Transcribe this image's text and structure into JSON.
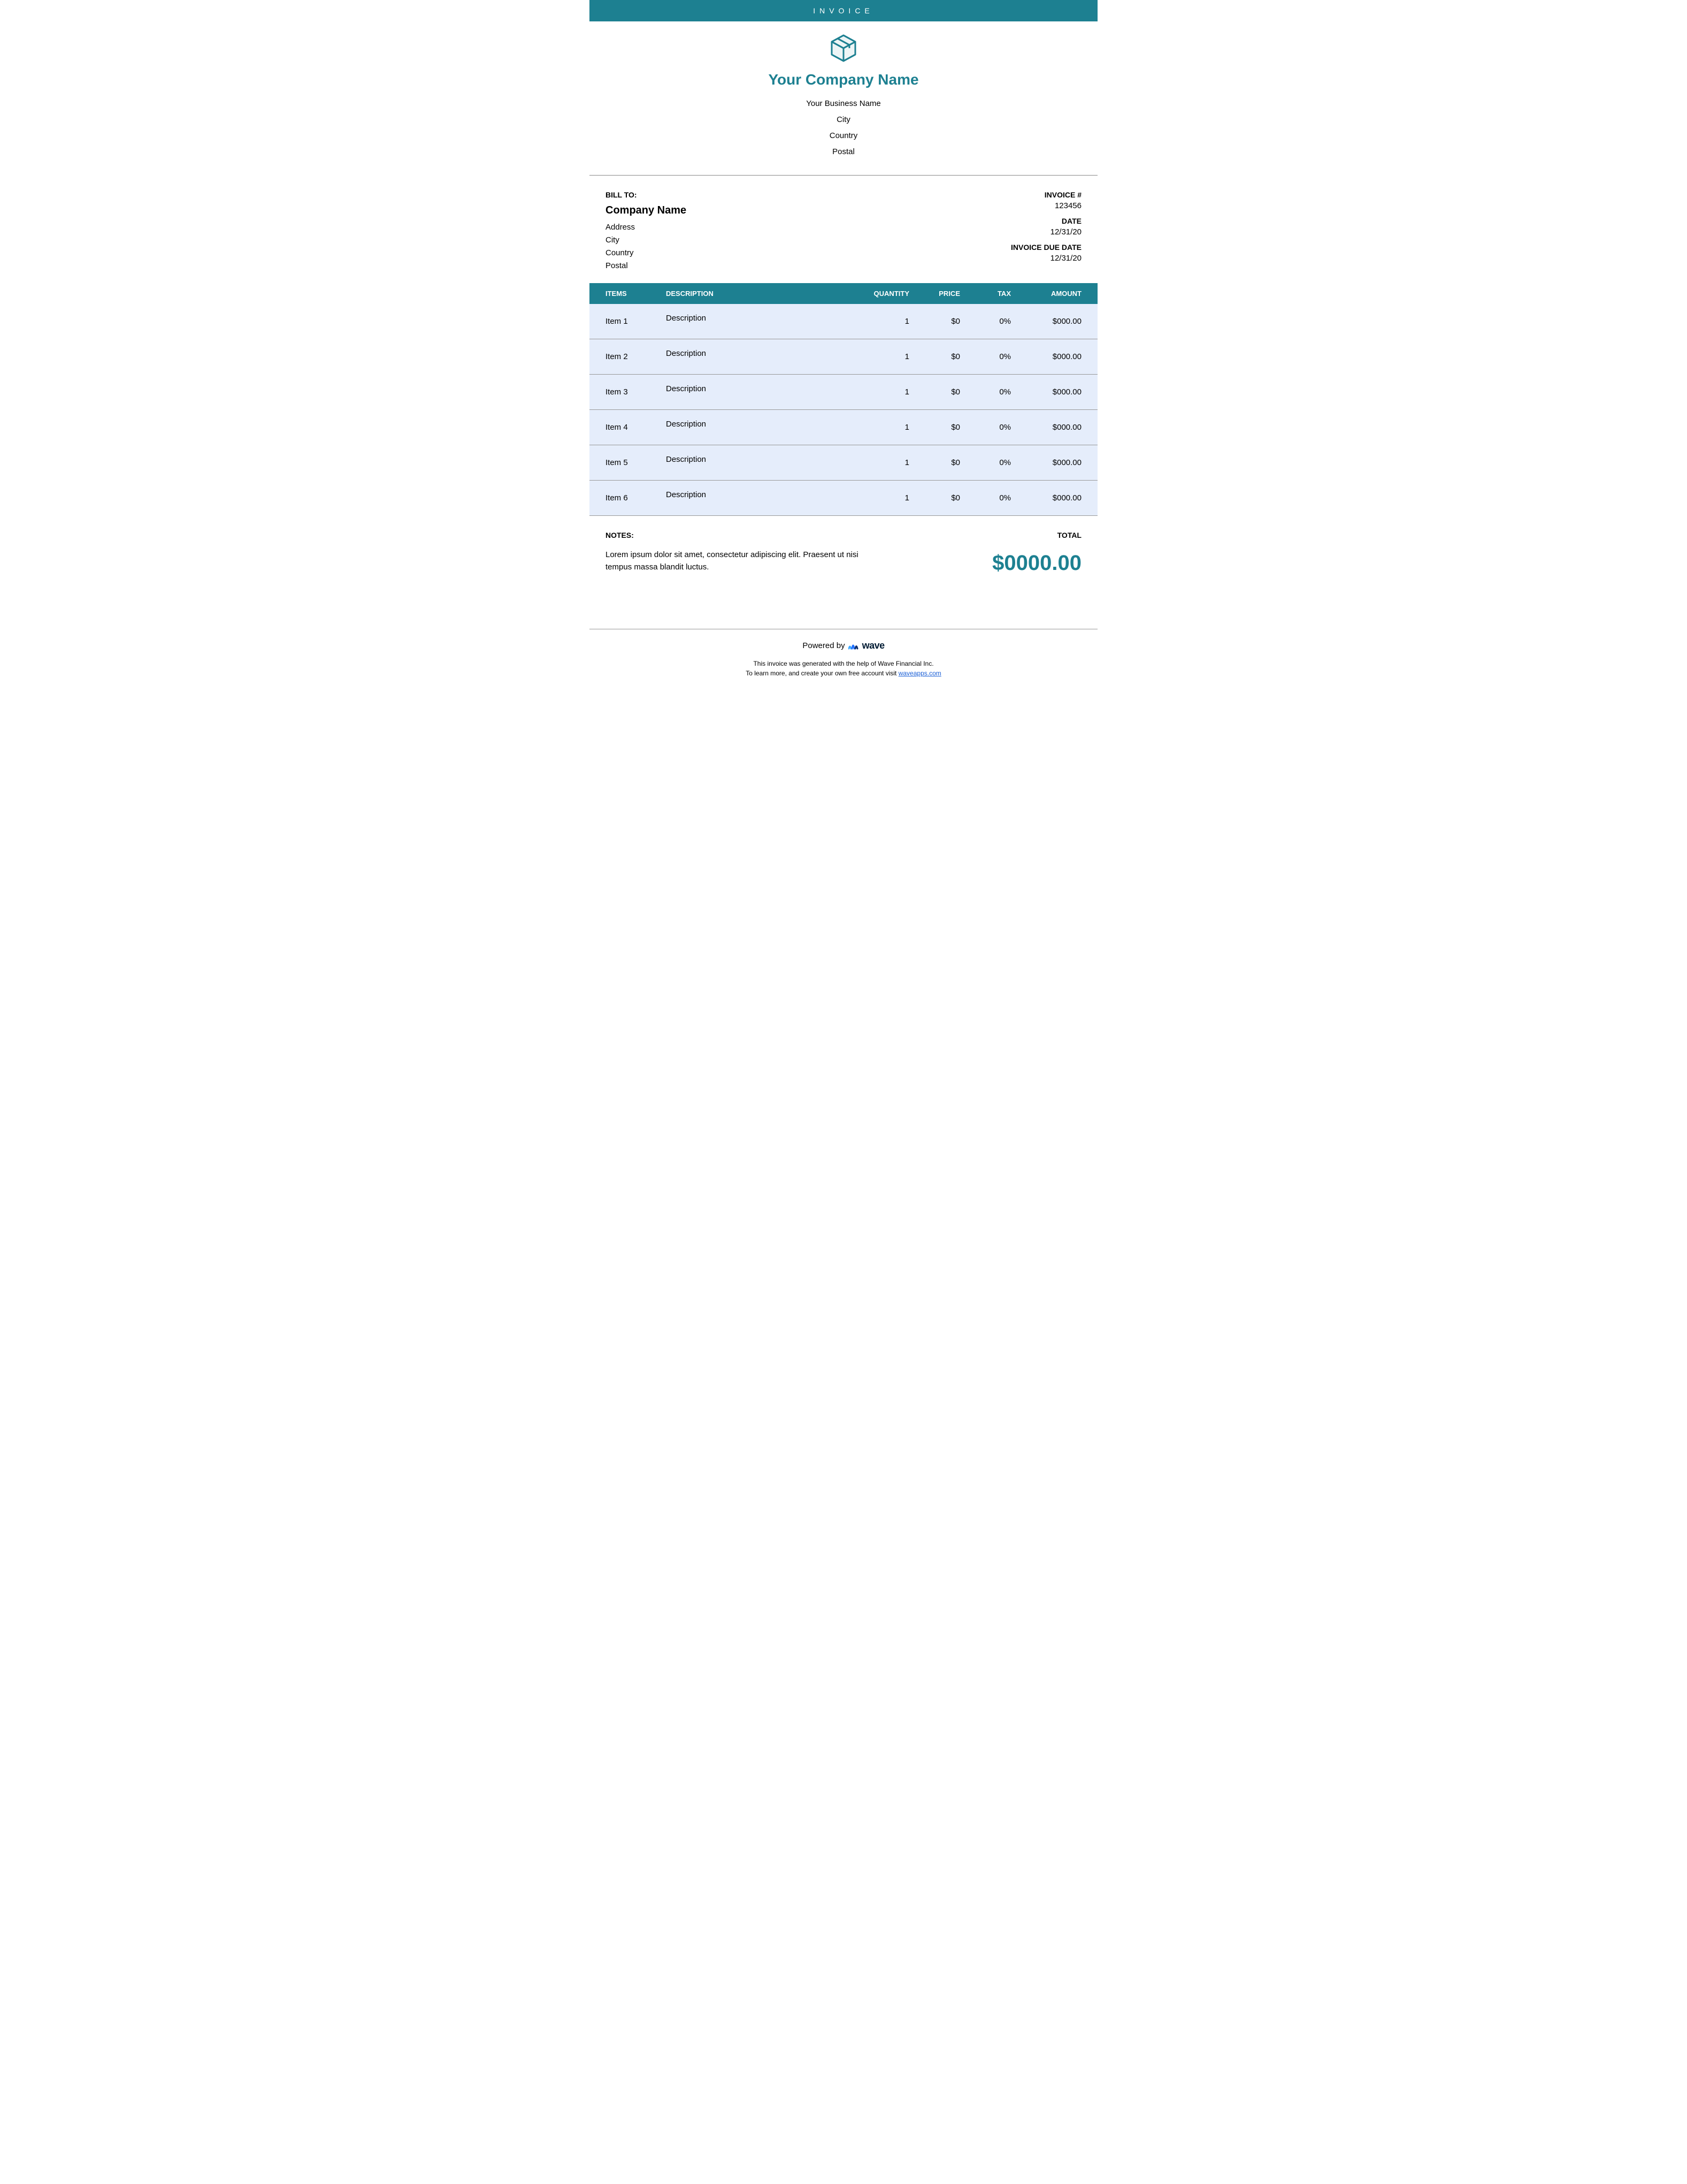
{
  "colors": {
    "brand": "#1d8091",
    "row_bg": "#e5edfb",
    "text": "#000000",
    "white": "#ffffff",
    "border": "#999999",
    "link": "#1a5fd6"
  },
  "banner": {
    "title": "INVOICE"
  },
  "company": {
    "name": "Your Company Name",
    "business": "Your Business Name",
    "city": "City",
    "country": "Country",
    "postal": "Postal"
  },
  "bill_to": {
    "label": "BILL TO:",
    "company": "Company Name",
    "address": "Address",
    "city": "City",
    "country": "Country",
    "postal": "Postal"
  },
  "invoice_meta": {
    "invoice_num_label": "INVOICE #",
    "invoice_num": "123456",
    "date_label": "DATE",
    "date": "12/31/20",
    "due_label": "INVOICE DUE DATE",
    "due": "12/31/20"
  },
  "table": {
    "headers": {
      "items": "ITEMS",
      "description": "DESCRIPTION",
      "quantity": "QUANTITY",
      "price": "PRICE",
      "tax": "TAX",
      "amount": "AMOUNT"
    },
    "column_widths": [
      "14%",
      "38%",
      "12%",
      "10%",
      "10%",
      "16%"
    ],
    "rows": [
      {
        "item": "Item 1",
        "description": "Description",
        "quantity": "1",
        "price": "$0",
        "tax": "0%",
        "amount": "$000.00"
      },
      {
        "item": "Item 2",
        "description": "Description",
        "quantity": "1",
        "price": "$0",
        "tax": "0%",
        "amount": "$000.00"
      },
      {
        "item": "Item 3",
        "description": "Description",
        "quantity": "1",
        "price": "$0",
        "tax": "0%",
        "amount": "$000.00"
      },
      {
        "item": "Item 4",
        "description": "Description",
        "quantity": "1",
        "price": "$0",
        "tax": "0%",
        "amount": "$000.00"
      },
      {
        "item": "Item 5",
        "description": "Description",
        "quantity": "1",
        "price": "$0",
        "tax": "0%",
        "amount": "$000.00"
      },
      {
        "item": "Item 6",
        "description": "Description",
        "quantity": "1",
        "price": "$0",
        "tax": "0%",
        "amount": "$000.00"
      }
    ]
  },
  "notes": {
    "label": "NOTES:",
    "text": "Lorem ipsum dolor sit amet, consectetur adipiscing elit. Praesent ut nisi tempus massa blandit luctus."
  },
  "total": {
    "label": "TOTAL",
    "amount": "$0000.00"
  },
  "footer": {
    "powered_by": "Powered by",
    "wave": "wave",
    "line1": "This invoice was generated with the help of Wave Financial Inc.",
    "line2_prefix": "To learn more, and create your own free account visit ",
    "link_text": "waveapps.com"
  }
}
